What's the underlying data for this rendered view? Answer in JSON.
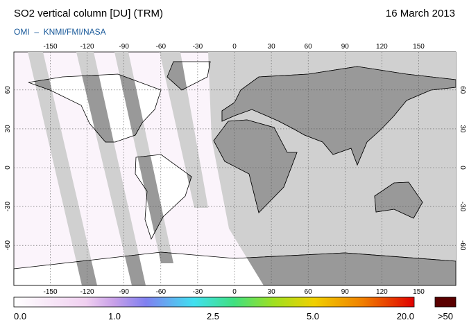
{
  "header": {
    "title": "SO2 vertical column [DU] (TRM)",
    "date": "16 March 2013",
    "subtitle": "OMI  –  KNMI/FMI/NASA"
  },
  "map": {
    "lonticks": [
      -150,
      -120,
      -90,
      -60,
      -30,
      0,
      30,
      60,
      90,
      120,
      150
    ],
    "latticks": [
      60,
      30,
      0,
      -30,
      -60
    ]
  },
  "colorbar": {
    "labels": [
      "0.0",
      "1.0",
      "2.5",
      "5.0",
      "20.0"
    ],
    "overflow": ">50"
  }
}
